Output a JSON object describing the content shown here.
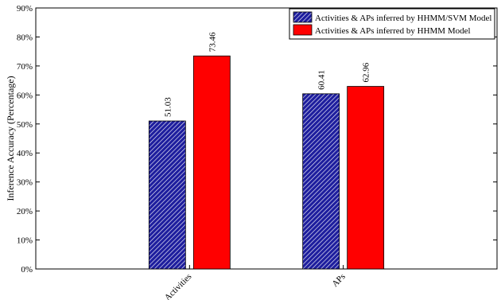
{
  "chart_data": {
    "type": "bar",
    "title": "",
    "xlabel": "",
    "ylabel": "Inference Accuracy (Percentage)",
    "ylim": [
      0,
      90
    ],
    "yticks": [
      "0%",
      "10%",
      "20%",
      "30%",
      "40%",
      "50%",
      "60%",
      "70%",
      "80%",
      "90%"
    ],
    "categories": [
      "Activities",
      "APs"
    ],
    "series": [
      {
        "name": "Activities & APs inferred by HHMM/SVM Model",
        "values": [
          51.03,
          60.41
        ],
        "labels": [
          "51.03",
          "60.41"
        ],
        "color": "#2b2bb8",
        "pattern": "diagonal-hatch"
      },
      {
        "name": "Activities & APs inferred by HHMM Model",
        "values": [
          73.46,
          62.96
        ],
        "labels": [
          "73.46",
          "62.96"
        ],
        "color": "#ff0000",
        "pattern": "solid"
      }
    ],
    "legend": "top-right",
    "grid": false
  }
}
